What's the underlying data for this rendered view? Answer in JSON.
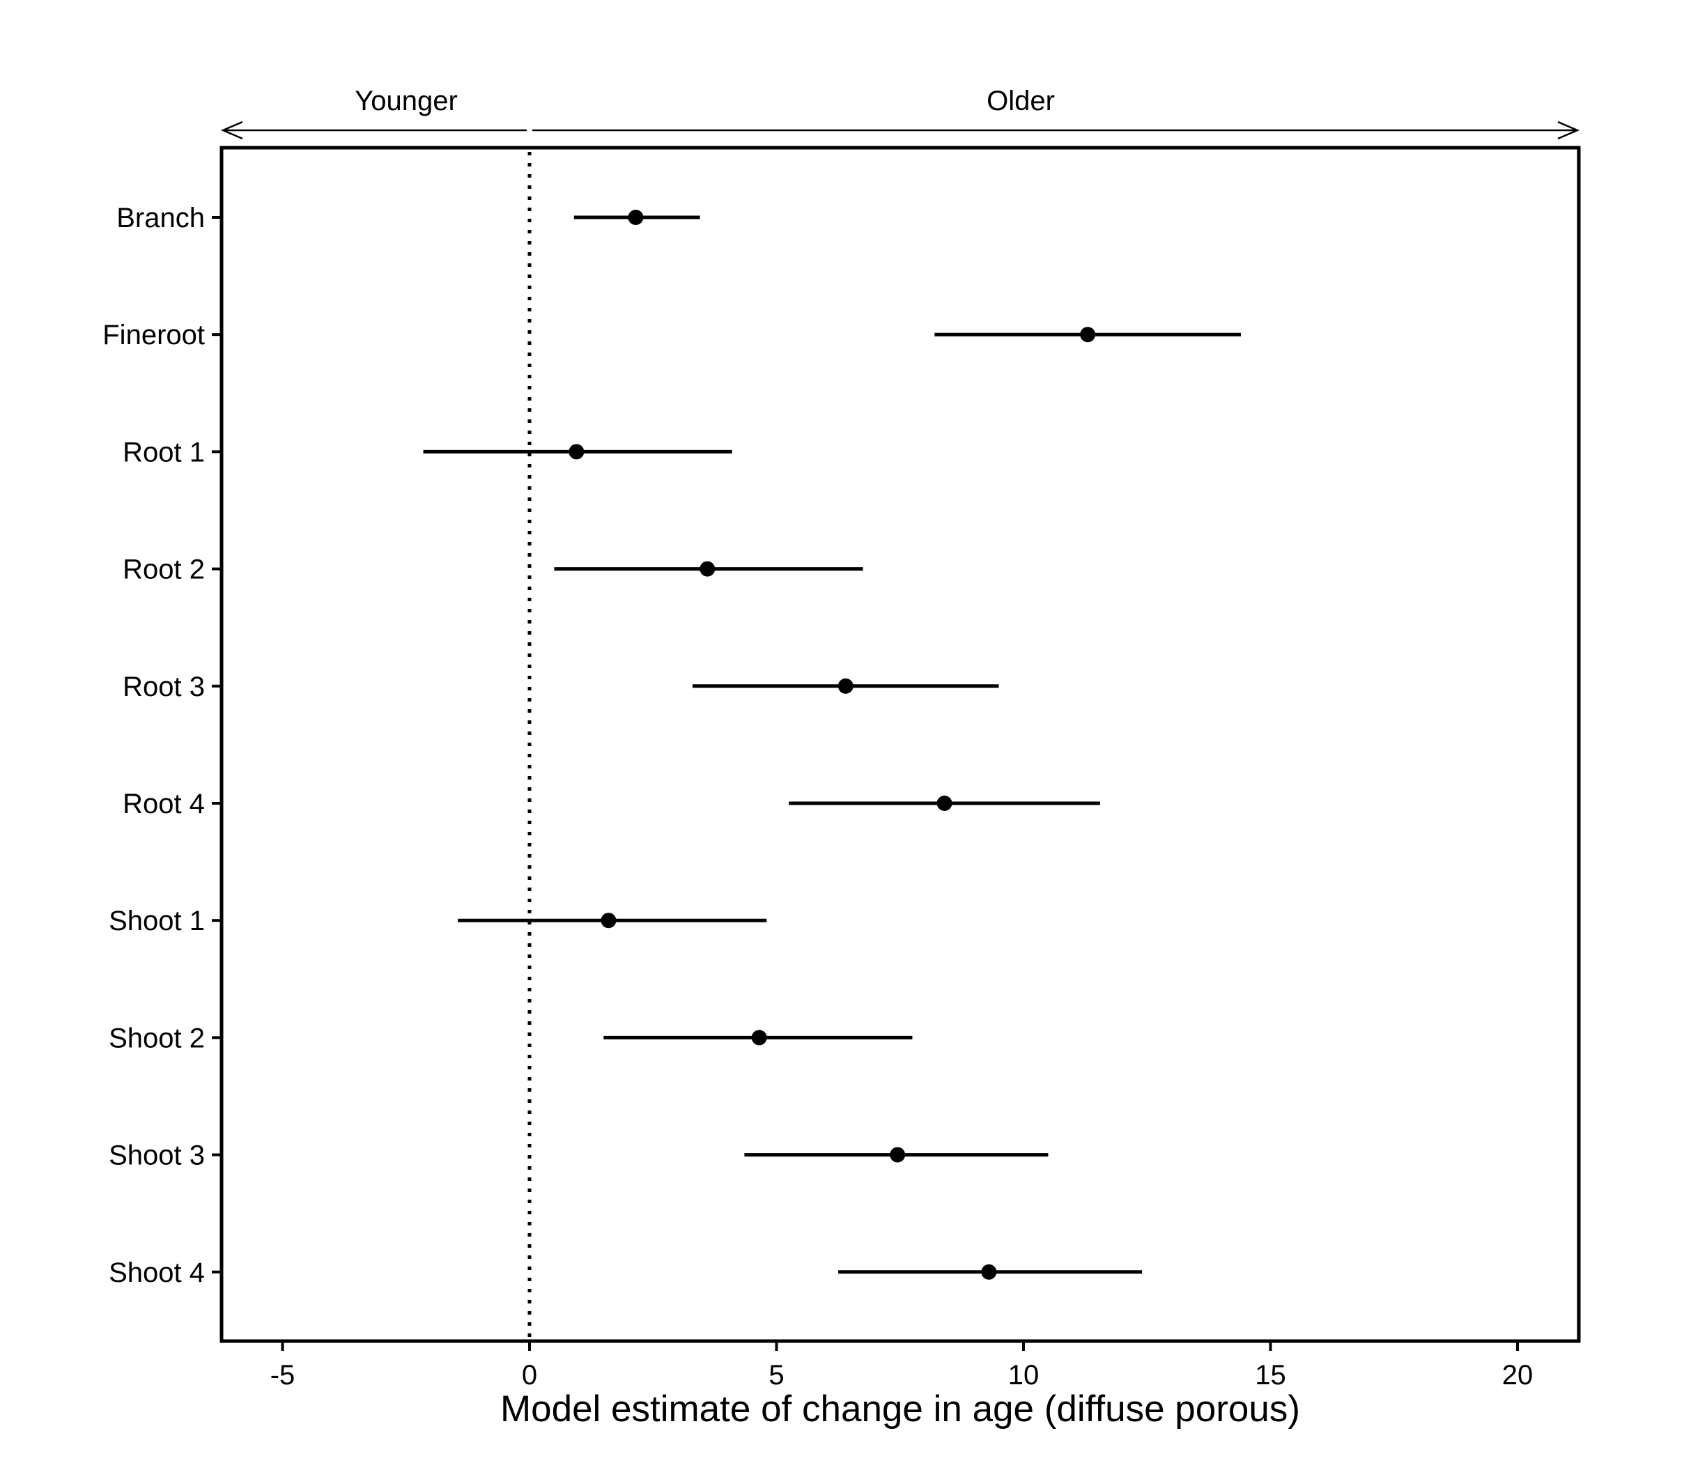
{
  "chart_data": {
    "type": "dot-interval",
    "title": "",
    "xlabel": "Model estimate of change in age (diffuse porous)",
    "ylabel": "",
    "xlim": [
      -6.2,
      21.3
    ],
    "xticks": [
      "-5",
      "0",
      "5",
      "10",
      "15",
      "20"
    ],
    "reference_line": {
      "x": 0,
      "style": "dotted"
    },
    "direction_labels": {
      "left": "Younger",
      "right": "Older"
    },
    "categories": [
      "Branch",
      "Fineroot",
      "Root 1",
      "Root 2",
      "Root 3",
      "Root 4",
      "Shoot 1",
      "Shoot 2",
      "Shoot 3",
      "Shoot 4"
    ],
    "series": [
      {
        "estimate": [
          2.15,
          11.3,
          0.95,
          3.6,
          6.4,
          8.4,
          1.6,
          4.65,
          7.45,
          9.3
        ],
        "lower": [
          0.9,
          8.2,
          -2.15,
          0.5,
          3.3,
          5.25,
          -1.45,
          1.5,
          4.35,
          6.25
        ],
        "upper": [
          3.45,
          14.4,
          4.1,
          6.75,
          9.5,
          11.55,
          4.8,
          7.75,
          10.5,
          12.4
        ]
      }
    ],
    "grid": false,
    "legend": "none"
  }
}
